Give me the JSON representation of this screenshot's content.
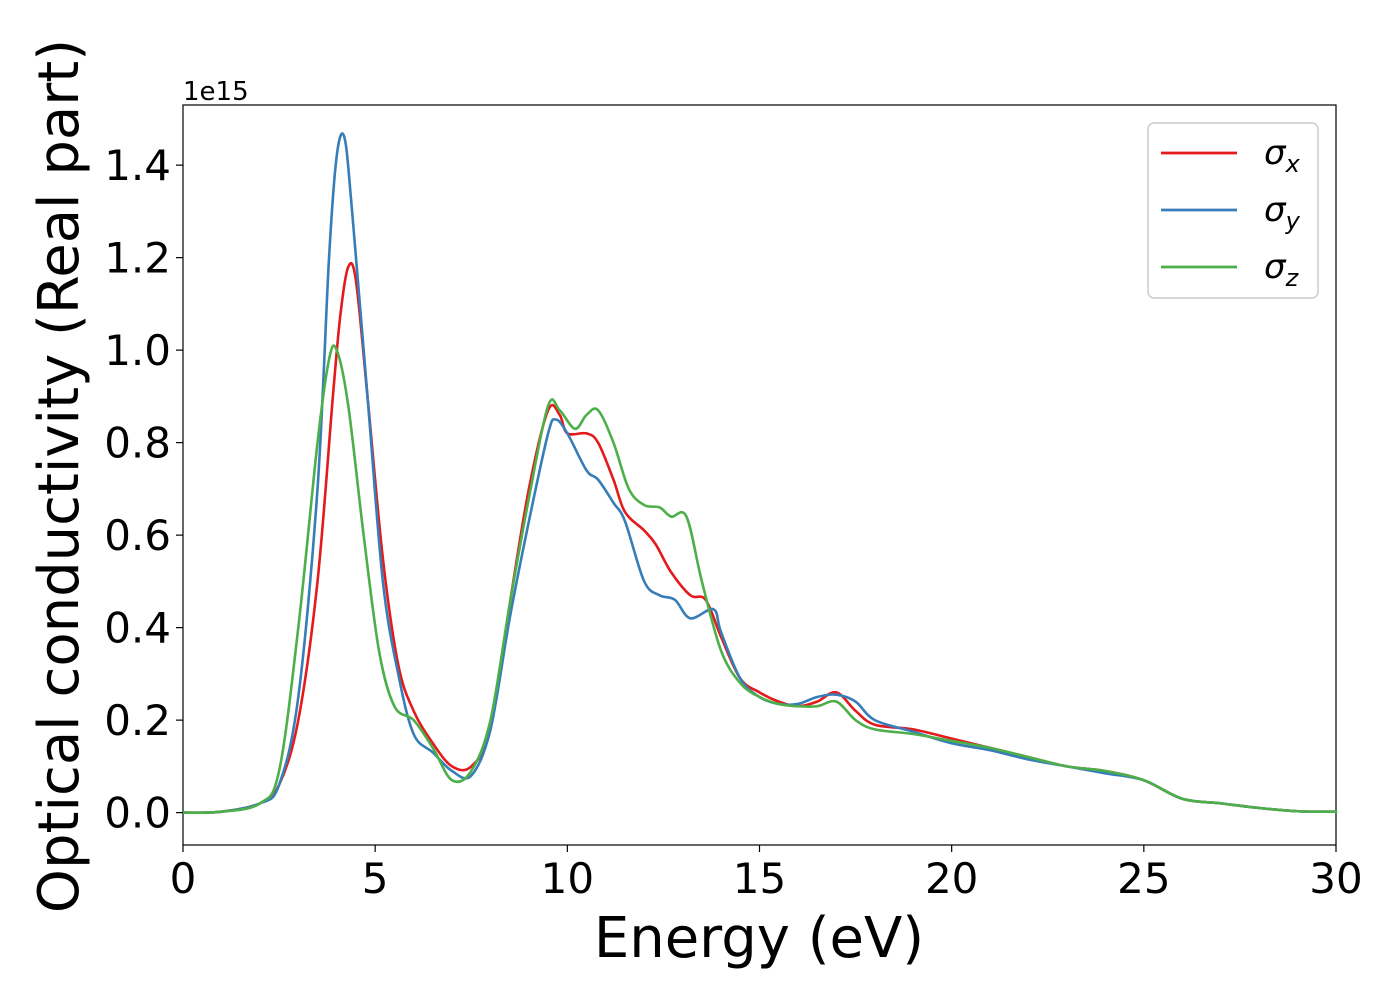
{
  "chart_data": {
    "type": "line",
    "title": "",
    "xlabel": "Energy (eV)",
    "ylabel": "Optical conductivity (Real part)",
    "y_offset_label": "1e15",
    "xlim": [
      0,
      30
    ],
    "ylim": [
      -0.07,
      1.53
    ],
    "xticks": [
      0,
      5,
      10,
      15,
      20,
      25,
      30
    ],
    "xtick_labels": [
      "0",
      "5",
      "10",
      "15",
      "20",
      "25",
      "30"
    ],
    "yticks": [
      0.0,
      0.2,
      0.4,
      0.6,
      0.8,
      1.0,
      1.2,
      1.4
    ],
    "ytick_labels": [
      "0.0",
      "0.2",
      "0.4",
      "0.6",
      "0.8",
      "1.0",
      "1.2",
      "1.4"
    ],
    "grid": false,
    "legend_position": "top-right",
    "series": [
      {
        "name": "σx",
        "symbol": "σ",
        "subscript": "x",
        "color": "#e41a1c",
        "points": [
          [
            0,
            0.0
          ],
          [
            1,
            0.002
          ],
          [
            2,
            0.02
          ],
          [
            2.5,
            0.06
          ],
          [
            3,
            0.2
          ],
          [
            3.5,
            0.5
          ],
          [
            3.9,
            0.9
          ],
          [
            4.1,
            1.08
          ],
          [
            4.3,
            1.18
          ],
          [
            4.5,
            1.15
          ],
          [
            4.8,
            0.9
          ],
          [
            5.2,
            0.55
          ],
          [
            5.6,
            0.32
          ],
          [
            6,
            0.22
          ],
          [
            6.5,
            0.15
          ],
          [
            7,
            0.1
          ],
          [
            7.5,
            0.1
          ],
          [
            8,
            0.18
          ],
          [
            8.5,
            0.45
          ],
          [
            9,
            0.7
          ],
          [
            9.5,
            0.87
          ],
          [
            9.8,
            0.86
          ],
          [
            10,
            0.82
          ],
          [
            10.5,
            0.82
          ],
          [
            10.8,
            0.8
          ],
          [
            11.2,
            0.72
          ],
          [
            11.5,
            0.65
          ],
          [
            12,
            0.61
          ],
          [
            12.3,
            0.58
          ],
          [
            12.7,
            0.52
          ],
          [
            13.2,
            0.47
          ],
          [
            13.6,
            0.46
          ],
          [
            14,
            0.38
          ],
          [
            14.5,
            0.29
          ],
          [
            15,
            0.26
          ],
          [
            15.5,
            0.24
          ],
          [
            16,
            0.23
          ],
          [
            16.5,
            0.24
          ],
          [
            17,
            0.26
          ],
          [
            17.5,
            0.22
          ],
          [
            18,
            0.19
          ],
          [
            19,
            0.18
          ],
          [
            20,
            0.16
          ],
          [
            21,
            0.14
          ],
          [
            22,
            0.12
          ],
          [
            23,
            0.1
          ],
          [
            24,
            0.09
          ],
          [
            25,
            0.07
          ],
          [
            26,
            0.03
          ],
          [
            27,
            0.02
          ],
          [
            28,
            0.01
          ],
          [
            29,
            0.003
          ],
          [
            30,
            0.002
          ]
        ]
      },
      {
        "name": "σy",
        "symbol": "σ",
        "subscript": "y",
        "color": "#377eb8",
        "points": [
          [
            0,
            0.0
          ],
          [
            1,
            0.002
          ],
          [
            2,
            0.02
          ],
          [
            2.5,
            0.06
          ],
          [
            3,
            0.25
          ],
          [
            3.5,
            0.7
          ],
          [
            3.8,
            1.2
          ],
          [
            4.0,
            1.42
          ],
          [
            4.2,
            1.46
          ],
          [
            4.4,
            1.3
          ],
          [
            4.8,
            0.9
          ],
          [
            5.2,
            0.5
          ],
          [
            5.6,
            0.3
          ],
          [
            6,
            0.17
          ],
          [
            6.5,
            0.13
          ],
          [
            7,
            0.09
          ],
          [
            7.5,
            0.08
          ],
          [
            8,
            0.18
          ],
          [
            8.5,
            0.42
          ],
          [
            9,
            0.63
          ],
          [
            9.5,
            0.82
          ],
          [
            9.7,
            0.85
          ],
          [
            10,
            0.82
          ],
          [
            10.5,
            0.74
          ],
          [
            10.8,
            0.72
          ],
          [
            11.2,
            0.67
          ],
          [
            11.5,
            0.63
          ],
          [
            12,
            0.5
          ],
          [
            12.4,
            0.47
          ],
          [
            12.8,
            0.46
          ],
          [
            13.2,
            0.42
          ],
          [
            13.8,
            0.44
          ],
          [
            14,
            0.39
          ],
          [
            14.5,
            0.29
          ],
          [
            15,
            0.25
          ],
          [
            15.5,
            0.235
          ],
          [
            16,
            0.235
          ],
          [
            16.5,
            0.25
          ],
          [
            17,
            0.255
          ],
          [
            17.5,
            0.24
          ],
          [
            18,
            0.2
          ],
          [
            19,
            0.175
          ],
          [
            20,
            0.15
          ],
          [
            21,
            0.135
          ],
          [
            22,
            0.115
          ],
          [
            23,
            0.1
          ],
          [
            24,
            0.085
          ],
          [
            25,
            0.07
          ],
          [
            26,
            0.03
          ],
          [
            27,
            0.02
          ],
          [
            28,
            0.01
          ],
          [
            29,
            0.003
          ],
          [
            30,
            0.002
          ]
        ]
      },
      {
        "name": "σz",
        "symbol": "σ",
        "subscript": "z",
        "color": "#4daf4a",
        "points": [
          [
            0,
            0.0
          ],
          [
            1,
            0.002
          ],
          [
            2,
            0.02
          ],
          [
            2.5,
            0.09
          ],
          [
            3,
            0.4
          ],
          [
            3.5,
            0.8
          ],
          [
            3.8,
            0.98
          ],
          [
            4.0,
            1.0
          ],
          [
            4.3,
            0.88
          ],
          [
            4.7,
            0.6
          ],
          [
            5.1,
            0.35
          ],
          [
            5.5,
            0.23
          ],
          [
            6,
            0.2
          ],
          [
            6.5,
            0.14
          ],
          [
            7,
            0.07
          ],
          [
            7.5,
            0.09
          ],
          [
            8,
            0.2
          ],
          [
            8.5,
            0.45
          ],
          [
            9,
            0.68
          ],
          [
            9.5,
            0.88
          ],
          [
            9.8,
            0.87
          ],
          [
            10.2,
            0.83
          ],
          [
            10.5,
            0.86
          ],
          [
            10.8,
            0.87
          ],
          [
            11.2,
            0.8
          ],
          [
            11.6,
            0.7
          ],
          [
            12,
            0.665
          ],
          [
            12.4,
            0.66
          ],
          [
            12.7,
            0.64
          ],
          [
            13.1,
            0.64
          ],
          [
            13.5,
            0.5
          ],
          [
            14,
            0.35
          ],
          [
            14.5,
            0.28
          ],
          [
            15,
            0.25
          ],
          [
            15.5,
            0.235
          ],
          [
            16,
            0.23
          ],
          [
            16.5,
            0.23
          ],
          [
            17,
            0.24
          ],
          [
            17.5,
            0.2
          ],
          [
            18,
            0.18
          ],
          [
            19,
            0.17
          ],
          [
            20,
            0.155
          ],
          [
            21,
            0.14
          ],
          [
            22,
            0.12
          ],
          [
            23,
            0.1
          ],
          [
            24,
            0.09
          ],
          [
            25,
            0.07
          ],
          [
            26,
            0.03
          ],
          [
            27,
            0.02
          ],
          [
            28,
            0.01
          ],
          [
            29,
            0.003
          ],
          [
            30,
            0.002
          ]
        ]
      }
    ]
  }
}
